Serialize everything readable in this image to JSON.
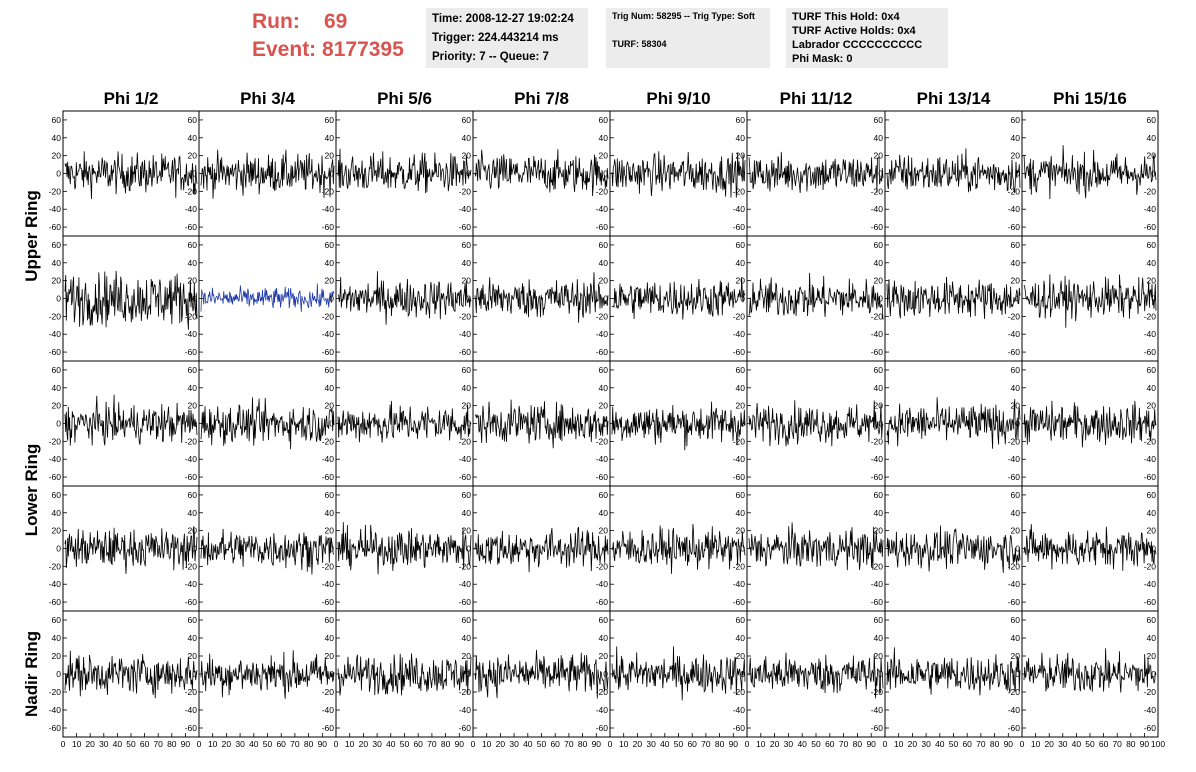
{
  "header": {
    "run_label": "Run:",
    "run_value": "69",
    "event_label": "Event:",
    "event_value": "8177395"
  },
  "info_box_1": {
    "time": "Time: 2008-12-27 19:02:24",
    "trigger": "Trigger: 224.443214 ms",
    "priority": "Priority: 7 -- Queue: 7"
  },
  "info_box_2": {
    "trig": "Trig Num: 58295 -- Trig Type: Soft",
    "turf": "TURF: 58304"
  },
  "info_box_3": {
    "hold": "TURF This Hold: 0x4",
    "active": "TURF Active Holds: 0x4",
    "labrador": "Labrador CCCCCCCCCC",
    "phimask": "Phi Mask: 0"
  },
  "columns": [
    "Phi 1/2",
    "Phi 3/4",
    "Phi 5/6",
    "Phi 7/8",
    "Phi 9/10",
    "Phi 11/12",
    "Phi 13/14",
    "Phi 15/16"
  ],
  "ring_labels": [
    "Upper Ring",
    "Lower Ring",
    "Nadir Ring"
  ],
  "y_ticks": [
    "60",
    "40",
    "20",
    "0",
    "-20",
    "-40",
    "-60"
  ],
  "x_ticks": [
    "0",
    "10",
    "20",
    "30",
    "40",
    "50",
    "60",
    "70",
    "80",
    "90",
    "100"
  ],
  "colors": {
    "header_red": "#d9534f",
    "box_bg": "#ececec",
    "trace": "#000000",
    "highlight_trace": "#1f3aa8"
  },
  "chart_data": {
    "type": "line",
    "layout": "grid 5 rows x 8 columns of waveform panels",
    "xlim": [
      0,
      100
    ],
    "ylim": [
      -70,
      70
    ],
    "highlighted_panel": {
      "row": 1,
      "column": "Phi 3/4"
    },
    "panels": "noise-like waveforms, amplitude roughly +/-40"
  }
}
